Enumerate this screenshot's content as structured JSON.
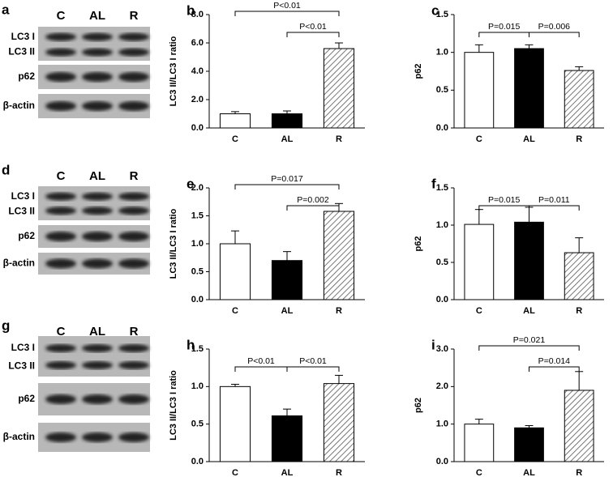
{
  "panels": [
    {
      "letter": "a",
      "lanes": [
        "C",
        "AL",
        "R"
      ],
      "rows": [
        "LC3 I",
        "LC3 II",
        "p62",
        "β-actin"
      ]
    },
    {
      "letter": "d",
      "lanes": [
        "C",
        "AL",
        "R"
      ],
      "rows": [
        "LC3 I",
        "LC3 II",
        "p62",
        "β-actin"
      ]
    },
    {
      "letter": "g",
      "lanes": [
        "C",
        "AL",
        "R"
      ],
      "rows": [
        "LC3 I",
        "LC3 II",
        "p62",
        "β-actin"
      ]
    }
  ],
  "chart_data": [
    {
      "type": "bar",
      "panel": "b",
      "ylabel": "LC3 II/LC3 I ratio",
      "categories": [
        "C",
        "AL",
        "R"
      ],
      "values": [
        1.0,
        1.0,
        5.6
      ],
      "errors": [
        0.15,
        0.2,
        0.4
      ],
      "colors": [
        "#ffffff",
        "#000000",
        "#ffffff"
      ],
      "hatch": [
        false,
        false,
        true
      ],
      "ylim": [
        0,
        8
      ],
      "yticks": [
        {
          "value": 0,
          "label": "0.0"
        },
        {
          "value": 2,
          "label": "2.0"
        },
        {
          "value": 4,
          "label": "4.0"
        },
        {
          "value": 6,
          "label": "6.0"
        },
        {
          "value": 8,
          "label": "8.0"
        }
      ],
      "annotations": [
        {
          "from": "C",
          "to": "R",
          "text": "P<0.01"
        },
        {
          "from": "AL",
          "to": "R",
          "text": "P<0.01"
        }
      ]
    },
    {
      "type": "bar",
      "panel": "c",
      "ylabel": "p62",
      "categories": [
        "C",
        "AL",
        "R"
      ],
      "values": [
        1.0,
        1.05,
        0.76
      ],
      "errors": [
        0.1,
        0.05,
        0.05
      ],
      "colors": [
        "#ffffff",
        "#000000",
        "#ffffff"
      ],
      "hatch": [
        false,
        false,
        true
      ],
      "ylim": [
        0,
        1.5
      ],
      "yticks": [
        {
          "value": 0,
          "label": "0.0"
        },
        0.5,
        {
          "value": 1,
          "label": "1.0"
        },
        1.5
      ],
      "annotations": [
        {
          "from": "C",
          "to": "AL",
          "text": "P=0.015"
        },
        {
          "from": "AL",
          "to": "R",
          "text": "P=0.006"
        }
      ]
    },
    {
      "type": "bar",
      "panel": "e",
      "ylabel": "LC3 II/LC3 I ratio",
      "categories": [
        "C",
        "AL",
        "R"
      ],
      "values": [
        1.0,
        0.7,
        1.58
      ],
      "errors": [
        0.23,
        0.16,
        0.14
      ],
      "colors": [
        "#ffffff",
        "#000000",
        "#ffffff"
      ],
      "hatch": [
        false,
        false,
        true
      ],
      "ylim": [
        0,
        2
      ],
      "yticks": [
        {
          "value": 0,
          "label": "0.0"
        },
        0.5,
        {
          "value": 1,
          "label": "1.0"
        },
        1.5,
        {
          "value": 2,
          "label": "2.0"
        }
      ],
      "annotations": [
        {
          "from": "C",
          "to": "R",
          "text": "P=0.017"
        },
        {
          "from": "AL",
          "to": "R",
          "text": "P=0.002"
        }
      ]
    },
    {
      "type": "bar",
      "panel": "f",
      "ylabel": "p62",
      "categories": [
        "C",
        "AL",
        "R"
      ],
      "values": [
        1.01,
        1.04,
        0.63
      ],
      "errors": [
        0.2,
        0.2,
        0.2
      ],
      "colors": [
        "#ffffff",
        "#000000",
        "#ffffff"
      ],
      "hatch": [
        false,
        false,
        true
      ],
      "ylim": [
        0,
        1.5
      ],
      "yticks": [
        {
          "value": 0,
          "label": "0.0"
        },
        0.5,
        {
          "value": 1,
          "label": "1.0"
        },
        1.5
      ],
      "annotations": [
        {
          "from": "C",
          "to": "AL",
          "text": "P=0.015"
        },
        {
          "from": "AL",
          "to": "R",
          "text": "P=0.011"
        }
      ]
    },
    {
      "type": "bar",
      "panel": "h",
      "ylabel": "LC3 II/LC3 I ratio",
      "categories": [
        "C",
        "AL",
        "R"
      ],
      "values": [
        1.0,
        0.61,
        1.04
      ],
      "errors": [
        0.03,
        0.09,
        0.11
      ],
      "colors": [
        "#ffffff",
        "#000000",
        "#ffffff"
      ],
      "hatch": [
        false,
        false,
        true
      ],
      "ylim": [
        0,
        1.5
      ],
      "yticks": [
        {
          "value": 0,
          "label": "0.0"
        },
        0.5,
        {
          "value": 1,
          "label": "1.0"
        },
        1.5
      ],
      "annotations": [
        {
          "from": "C",
          "to": "AL",
          "text": "P<0.01"
        },
        {
          "from": "AL",
          "to": "R",
          "text": "P<0.01"
        }
      ]
    },
    {
      "type": "bar",
      "panel": "i",
      "ylabel": "p62",
      "categories": [
        "C",
        "AL",
        "R"
      ],
      "values": [
        1.0,
        0.9,
        1.9
      ],
      "errors": [
        0.13,
        0.06,
        0.5
      ],
      "colors": [
        "#ffffff",
        "#000000",
        "#ffffff"
      ],
      "hatch": [
        false,
        false,
        true
      ],
      "ylim": [
        0,
        3
      ],
      "yticks": [
        {
          "value": 0,
          "label": "0.0"
        },
        {
          "value": 1,
          "label": "1.0"
        },
        {
          "value": 2,
          "label": "2.0"
        },
        {
          "value": 3,
          "label": "3.0"
        }
      ],
      "annotations": [
        {
          "from": "C",
          "to": "R",
          "text": "P=0.021"
        },
        {
          "from": "AL",
          "to": "R",
          "text": "P=0.014"
        }
      ]
    }
  ]
}
